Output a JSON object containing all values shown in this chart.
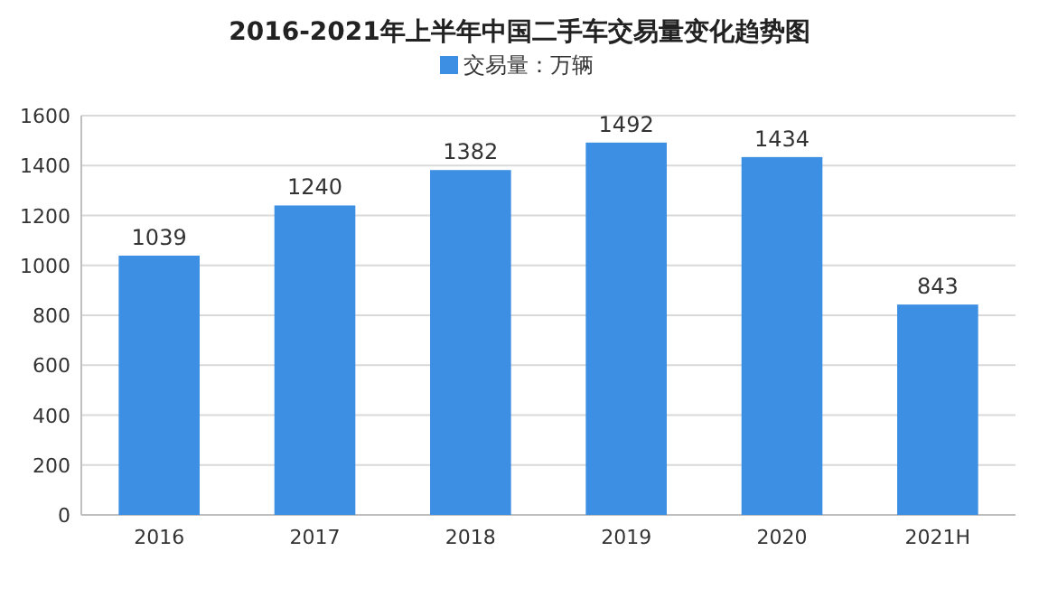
{
  "chart_data": {
    "type": "bar",
    "title": "2016-2021年上半年中国二手车交易量变化趋势图",
    "categories": [
      "2016",
      "2017",
      "2018",
      "2019",
      "2020",
      "2021H"
    ],
    "series": [
      {
        "name": "交易量：万辆",
        "color": "#3c8fe3",
        "values": [
          1039,
          1240,
          1382,
          1492,
          1434,
          843
        ]
      }
    ],
    "ylim": [
      0,
      1600
    ],
    "yticks": [
      0,
      200,
      400,
      600,
      800,
      1000,
      1200,
      1400,
      1600
    ],
    "grid": "y",
    "legend": "top",
    "data_labels": true
  }
}
